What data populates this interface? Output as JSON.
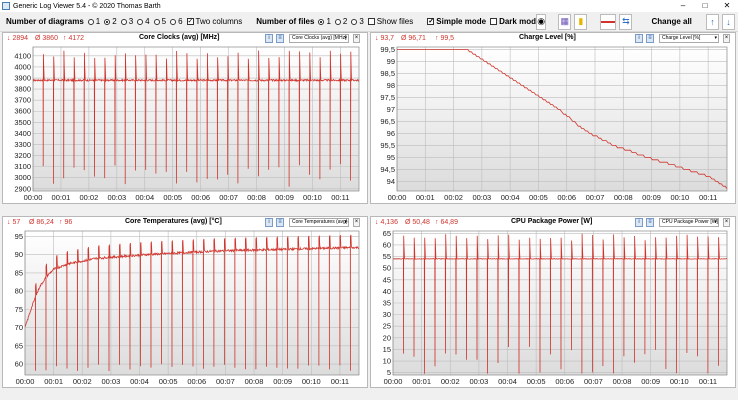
{
  "window": {
    "title": "Generic Log Viewer 5.4 - © 2020 Thomas Barth"
  },
  "toolbar": {
    "diagrams_label": "Number of diagrams",
    "diagram_options": [
      "1",
      "2",
      "3",
      "4",
      "5",
      "6"
    ],
    "diagrams_selected": "2",
    "two_columns_label": "Two columns",
    "files_label": "Number of files",
    "file_options": [
      "1",
      "2",
      "3"
    ],
    "files_selected": "1",
    "show_files_label": "Show files",
    "simple_mode_label": "Simple mode",
    "dark_mode_label": "Dark mod",
    "change_all_label": "Change all",
    "icons": [
      "camera-icon",
      "save-icon",
      "folder-icon",
      "line-icon",
      "swap-icon",
      "arrow-up-icon",
      "arrow-down-icon"
    ]
  },
  "panels": [
    {
      "title": "Core Clocks (avg) [MHz]",
      "stats": {
        "min": "↓ 2894",
        "avg": "Ø 3860",
        "max": "↑ 4172"
      },
      "selector": "Core Clocks (avg) [MHz]"
    },
    {
      "title": "Charge Level [%]",
      "stats": {
        "min": "↓ 93,7",
        "avg": "Ø 96,71",
        "max": "↑ 99,5"
      },
      "selector": "Charge Level [%]"
    },
    {
      "title": "Core Temperatures (avg) [°C]",
      "stats": {
        "min": "↓ 57",
        "avg": "Ø 86,24",
        "max": "↑ 96"
      },
      "selector": "Core Temperatures (avg)"
    },
    {
      "title": "CPU Package Power [W]",
      "stats": {
        "min": "↓ 4,136",
        "avg": "Ø 50,48",
        "max": "↑ 64,89"
      },
      "selector": "CPU Package Power [W]"
    }
  ],
  "chart_data": [
    {
      "type": "line",
      "title": "Core Clocks (avg) [MHz]",
      "x_ticks": [
        "00:00",
        "00:01",
        "00:02",
        "00:03",
        "00:04",
        "00:05",
        "00:06",
        "00:07",
        "00:08",
        "00:09",
        "00:10",
        "00:11"
      ],
      "y_ticks": [
        2900,
        3000,
        3100,
        3200,
        3300,
        3400,
        3500,
        3600,
        3700,
        3800,
        3900,
        4000,
        4100
      ],
      "ylim": [
        2880,
        4180
      ],
      "xlim_seconds": [
        0,
        700
      ],
      "series": [
        {
          "color": "#d0342c",
          "baseline": 3880,
          "high": 4150,
          "low": 2900,
          "dip_period_s": 22
        }
      ]
    },
    {
      "type": "line",
      "title": "Charge Level [%]",
      "x_ticks": [
        "00:00",
        "00:01",
        "00:02",
        "00:03",
        "00:04",
        "00:05",
        "00:06",
        "00:07",
        "00:08",
        "00:09",
        "00:10",
        "00:11"
      ],
      "y_ticks": [
        94,
        94.5,
        95,
        95.5,
        96,
        96.5,
        97,
        97.5,
        98,
        98.5,
        99,
        99.5
      ],
      "ylim": [
        93.6,
        99.6
      ],
      "xlim_seconds": [
        0,
        700
      ],
      "series": [
        {
          "color": "#d0342c",
          "points": [
            [
              0,
              99.5
            ],
            [
              150,
              99.5
            ],
            [
              240,
              98.3
            ],
            [
              330,
              97.2
            ],
            [
              400,
              96.1
            ],
            [
              460,
              95.5
            ],
            [
              530,
              95.0
            ],
            [
              600,
              94.6
            ],
            [
              660,
              94.2
            ],
            [
              700,
              93.7
            ]
          ]
        }
      ]
    },
    {
      "type": "line",
      "title": "Core Temperatures (avg) [°C]",
      "x_ticks": [
        "00:00",
        "00:01",
        "00:02",
        "00:03",
        "00:04",
        "00:05",
        "00:06",
        "00:07",
        "00:08",
        "00:09",
        "00:10",
        "00:11"
      ],
      "y_ticks": [
        60,
        65,
        70,
        75,
        80,
        85,
        90,
        95
      ],
      "ylim": [
        57,
        96.5
      ],
      "xlim_seconds": [
        0,
        700
      ],
      "series": [
        {
          "color": "#d0342c",
          "points": [
            [
              0,
              70
            ],
            [
              15,
              76
            ],
            [
              30,
              81
            ],
            [
              45,
              84
            ],
            [
              60,
              86
            ],
            [
              90,
              87.5
            ],
            [
              150,
              89
            ],
            [
              250,
              90
            ],
            [
              400,
              91
            ],
            [
              550,
              91.5
            ],
            [
              700,
              92
            ]
          ],
          "dip_low": 58,
          "dip_period_s": 22
        }
      ]
    },
    {
      "type": "line",
      "title": "CPU Package Power [W]",
      "x_ticks": [
        "00:00",
        "00:01",
        "00:02",
        "00:03",
        "00:04",
        "00:05",
        "00:06",
        "00:07",
        "00:08",
        "00:09",
        "00:10",
        "00:11"
      ],
      "y_ticks": [
        5,
        10,
        15,
        20,
        25,
        30,
        35,
        40,
        45,
        50,
        55,
        60,
        65
      ],
      "ylim": [
        4,
        66
      ],
      "xlim_seconds": [
        0,
        700
      ],
      "series": [
        {
          "color": "#d0342c",
          "baseline": 54,
          "high": 64.89,
          "low": 4.5,
          "dip_period_s": 22
        }
      ]
    }
  ]
}
